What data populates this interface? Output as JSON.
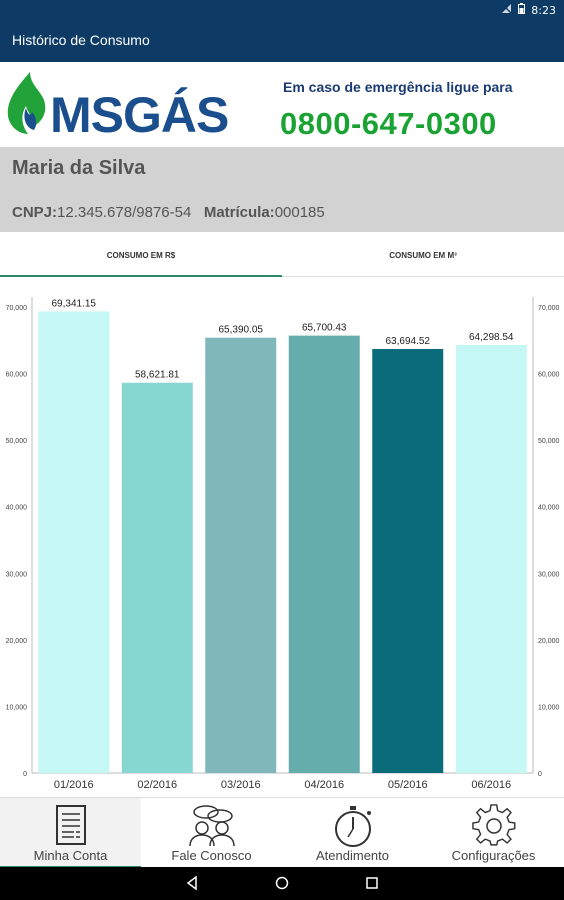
{
  "status_bar": {
    "time": "8:23"
  },
  "app_bar": {
    "title": "Histórico de Consumo"
  },
  "header": {
    "logo_text": "MSGÁS",
    "emergency_text": "Em caso de emergência ligue para",
    "phone": "0800-647-0300"
  },
  "customer": {
    "name": "Maria da Silva",
    "cnpj_label": "CNPJ:",
    "cnpj_value": "12.345.678/9876-54",
    "matricula_label": "Matrícula:",
    "matricula_value": "000185"
  },
  "tabs": [
    {
      "label": "CONSUMO EM R$",
      "active": true
    },
    {
      "label": "CONSUMO EM M³",
      "active": false
    }
  ],
  "chart_data": {
    "type": "bar",
    "categories": [
      "01/2016",
      "02/2016",
      "03/2016",
      "04/2016",
      "05/2016",
      "06/2016"
    ],
    "values": [
      69341.15,
      58621.81,
      65390.05,
      65700.43,
      63694.52,
      64298.54
    ],
    "value_labels": [
      "69,341.15",
      "58,621.81",
      "65,390.05",
      "65,700.43",
      "63,694.52",
      "64,298.54"
    ],
    "colors": [
      "#c5f7f4",
      "#86d6d2",
      "#7fb7bb",
      "#66aead",
      "#0a6b7a",
      "#c5f7f4"
    ],
    "ylim": [
      0,
      70000
    ],
    "yticks": [
      "0",
      "10,000",
      "20,000",
      "30,000",
      "40,000",
      "50,000",
      "60,000",
      "70,000"
    ],
    "title": "",
    "xlabel": "",
    "ylabel": "",
    "grid": false,
    "dual_axis": true
  },
  "bottom_nav": [
    {
      "label": "Minha Conta",
      "icon": "document-icon",
      "active": true
    },
    {
      "label": "Fale Conosco",
      "icon": "chat-people-icon",
      "active": false
    },
    {
      "label": "Atendimento",
      "icon": "stopwatch-icon",
      "active": false
    },
    {
      "label": "Configurações",
      "icon": "gear-icon",
      "active": false
    }
  ]
}
